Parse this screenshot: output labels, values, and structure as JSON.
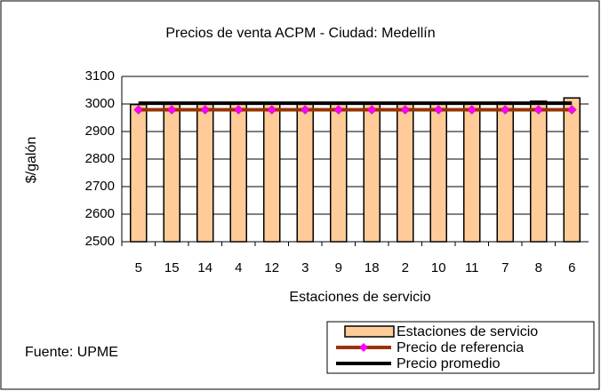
{
  "chart_data": {
    "type": "bar",
    "title": "Precios de venta ACPM - Ciudad: Medellín",
    "y_label": "$/galón",
    "x_label": "Estaciones de servicio",
    "annotation": "Fuente: UPME",
    "categories": [
      "5",
      "15",
      "14",
      "4",
      "12",
      "3",
      "9",
      "18",
      "2",
      "10",
      "11",
      "7",
      "8",
      "6"
    ],
    "series": [
      {
        "name": "Estaciones de servicio",
        "type": "bar",
        "color": "#ffcc99",
        "values": [
          2998,
          2999,
          2999,
          3000,
          3000,
          3001,
          3001,
          3002,
          3003,
          3004,
          3005,
          3006,
          3010,
          3022
        ]
      },
      {
        "name": "Precio de referencia",
        "type": "line",
        "color": "#993300",
        "marker_color": "#ff00ff",
        "values": [
          2979,
          2979,
          2979,
          2979,
          2979,
          2979,
          2979,
          2979,
          2979,
          2979,
          2979,
          2979,
          2979,
          2979
        ]
      },
      {
        "name": "Precio promedio",
        "type": "line",
        "color": "#000000",
        "values": [
          3003,
          3003,
          3003,
          3003,
          3003,
          3003,
          3003,
          3003,
          3003,
          3003,
          3003,
          3003,
          3003,
          3003
        ]
      }
    ],
    "ylim": [
      2500,
      3100
    ],
    "yticks": [
      2500,
      2600,
      2700,
      2800,
      2900,
      3000,
      3100
    ],
    "grid": true
  }
}
